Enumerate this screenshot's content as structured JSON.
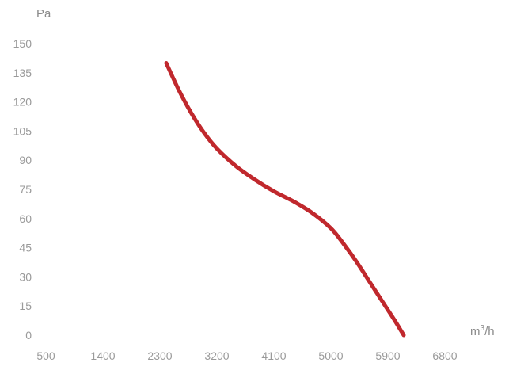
{
  "chart_data": {
    "type": "line",
    "title": "",
    "ylabel": "Pa",
    "xlabel_parts": {
      "prefix": "m",
      "superscript": "3",
      "suffix": "/h"
    },
    "x_ticks": [
      500,
      1400,
      2300,
      3200,
      4100,
      5000,
      5900,
      6800
    ],
    "y_ticks": [
      0,
      15,
      30,
      45,
      60,
      75,
      90,
      105,
      120,
      135,
      150
    ],
    "xlim": [
      500,
      6800
    ],
    "ylim": [
      0,
      150
    ],
    "grid": false,
    "series": [
      {
        "color": "#c0282d",
        "x": [
          2400,
          2600,
          2800,
          3000,
          3200,
          3500,
          3800,
          4100,
          4400,
          4700,
          5000,
          5200,
          5400,
          5600,
          5800,
          6000,
          6150
        ],
        "y": [
          140,
          126,
          114,
          104,
          96,
          87,
          80,
          74,
          69,
          63,
          55,
          47,
          38,
          28,
          18,
          8,
          0
        ]
      }
    ]
  }
}
